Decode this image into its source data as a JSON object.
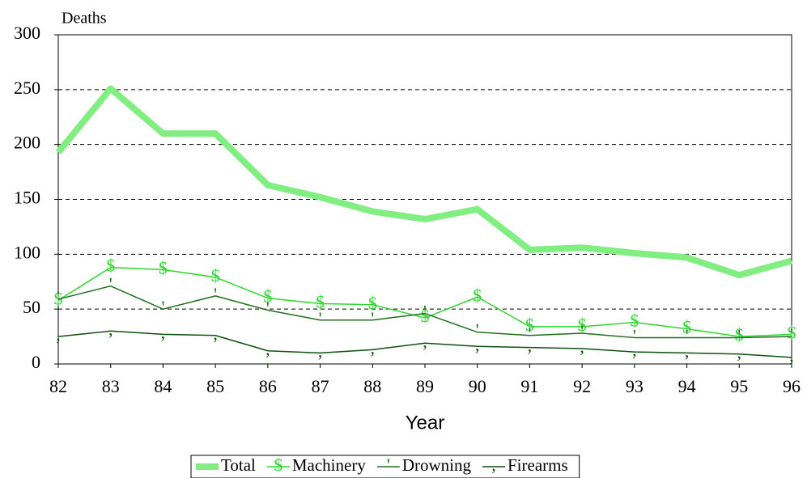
{
  "chart_data": {
    "type": "line",
    "y_label": "Deaths",
    "x_label": "Year",
    "x": [
      82,
      83,
      84,
      85,
      86,
      87,
      88,
      89,
      90,
      91,
      92,
      93,
      94,
      95,
      96
    ],
    "xlim": [
      82,
      96
    ],
    "xticks": [
      82,
      83,
      84,
      85,
      86,
      87,
      88,
      89,
      90,
      91,
      92,
      93,
      94,
      95,
      96
    ],
    "ylim": [
      0,
      300
    ],
    "yticks": [
      0,
      50,
      100,
      150,
      200,
      250,
      300
    ],
    "grid": true,
    "legend": "bottom",
    "series": [
      {
        "name": "Total",
        "color": "#80ee80",
        "values": [
          193,
          251,
          210,
          210,
          163,
          152,
          139,
          132,
          141,
          104,
          106,
          101,
          97,
          81,
          94
        ]
      },
      {
        "name": "Machinery",
        "color": "#2fd62f",
        "marker": "$",
        "values": [
          58,
          88,
          86,
          79,
          60,
          55,
          54,
          42,
          61,
          34,
          34,
          38,
          32,
          25,
          27
        ]
      },
      {
        "name": "Drowning",
        "color": "#1e6e1e",
        "marker": "'",
        "values": [
          59,
          71,
          50,
          62,
          49,
          40,
          40,
          46,
          29,
          26,
          28,
          24,
          24,
          24,
          25
        ]
      },
      {
        "name": "Firearms",
        "color": "#0f4f0f",
        "marker": ",",
        "values": [
          25,
          30,
          27,
          26,
          12,
          10,
          13,
          19,
          16,
          15,
          14,
          11,
          10,
          9,
          6
        ]
      }
    ]
  }
}
